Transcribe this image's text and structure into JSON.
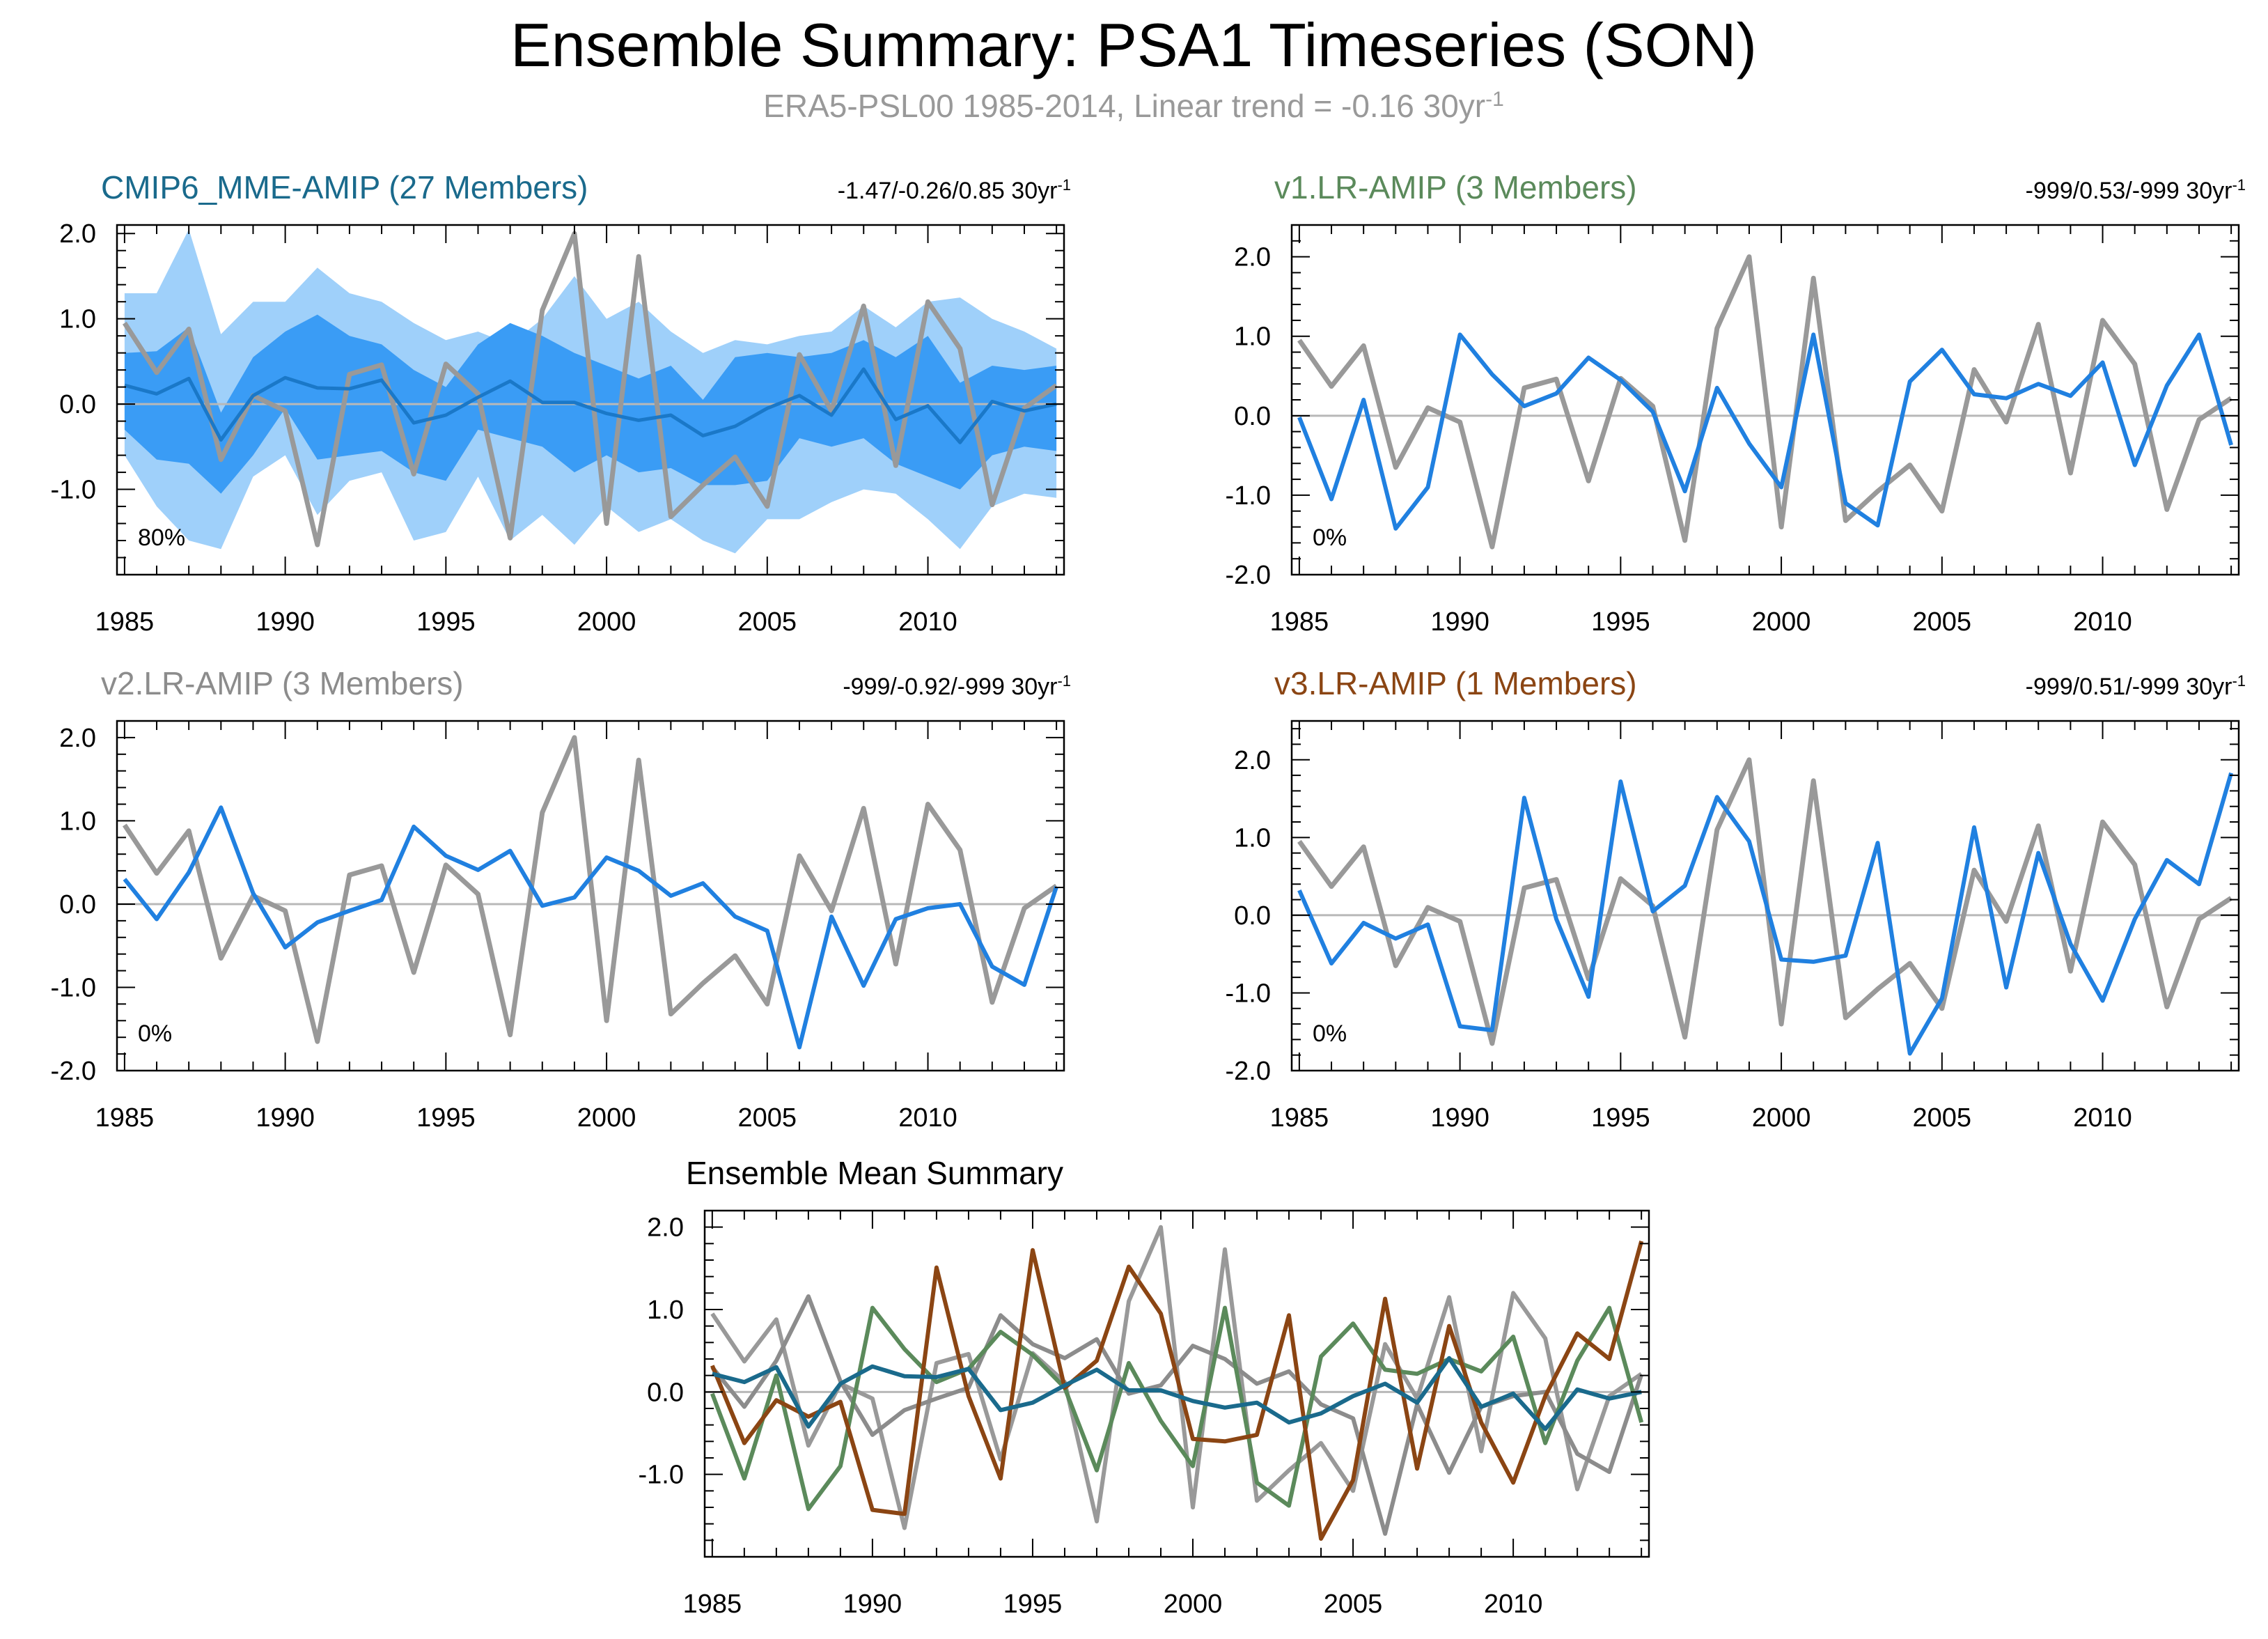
{
  "title": "Ensemble Summary: PSA1 Timeseries (SON)",
  "subtitle": "ERA5-PSL00 1985-2014, Linear trend = -0.16 30yr",
  "subtitle_sup": "-1",
  "colors": {
    "obs": "#999999",
    "model_line": "#2080e0",
    "band_outer": "#9fd0fa",
    "band_inner": "#3a9cf5",
    "mme_mean": "#1a78c8",
    "zero_line": "#b8b8b8",
    "mme_title": "#1a6a8c",
    "v1_title": "#5b8a5b",
    "v2_title": "#8c8c8c",
    "v3_title": "#8b4513"
  },
  "chart_data": [
    {
      "type": "line",
      "title": "CMIP6_MME-AMIP (27 Members)",
      "stats": "-1.47/-0.26/0.85 30yr",
      "stats_sup": "-1",
      "pct_label": "80%",
      "x": [
        1985,
        1986,
        1987,
        1988,
        1989,
        1990,
        1991,
        1992,
        1993,
        1994,
        1995,
        1996,
        1997,
        1998,
        1999,
        2000,
        2001,
        2002,
        2003,
        2004,
        2005,
        2006,
        2007,
        2008,
        2009,
        2010,
        2011,
        2012,
        2013,
        2014
      ],
      "xticks": [
        1985,
        1990,
        1995,
        2000,
        2005,
        2010
      ],
      "ylim": [
        -2.0,
        2.1
      ],
      "yticks": [
        2.0,
        1.0,
        0.0,
        -1.0
      ],
      "yticklabels": [
        "2.0",
        "1.0",
        "0.0",
        "-1.0"
      ],
      "observed": [
        0.95,
        0.37,
        0.88,
        -0.65,
        0.1,
        -0.08,
        -1.65,
        0.35,
        0.46,
        -0.82,
        0.47,
        0.12,
        -1.57,
        1.1,
        2.0,
        -1.4,
        1.73,
        -1.32,
        -0.95,
        -0.62,
        -1.2,
        0.58,
        -0.08,
        1.15,
        -0.72,
        1.2,
        0.65,
        -1.18,
        -0.05,
        0.22
      ],
      "model": [
        0.22,
        0.12,
        0.3,
        -0.42,
        0.1,
        0.31,
        0.19,
        0.18,
        0.28,
        -0.22,
        -0.13,
        0.08,
        0.27,
        0.02,
        0.02,
        -0.11,
        -0.19,
        -0.13,
        -0.37,
        -0.26,
        -0.05,
        0.1,
        -0.13,
        0.41,
        -0.18,
        -0.02,
        -0.45,
        0.03,
        -0.08,
        0.0
      ],
      "band_outer_hi": [
        1.3,
        1.3,
        2.05,
        0.82,
        1.2,
        1.2,
        1.6,
        1.3,
        1.2,
        0.95,
        0.75,
        0.85,
        0.7,
        1.0,
        1.5,
        1.0,
        1.2,
        0.85,
        0.6,
        0.75,
        0.7,
        0.8,
        0.85,
        1.15,
        0.9,
        1.2,
        1.25,
        1.0,
        0.85,
        0.65
      ],
      "band_inner_hi": [
        0.6,
        0.62,
        0.9,
        -0.1,
        0.55,
        0.85,
        1.05,
        0.8,
        0.7,
        0.4,
        0.2,
        0.7,
        0.95,
        0.8,
        0.6,
        0.45,
        0.3,
        0.45,
        0.05,
        0.55,
        0.6,
        0.55,
        0.6,
        0.75,
        0.55,
        0.8,
        0.25,
        0.45,
        0.4,
        0.45
      ],
      "band_inner_lo": [
        -0.3,
        -0.65,
        -0.7,
        -1.05,
        -0.6,
        -0.05,
        -0.65,
        -0.6,
        -0.55,
        -0.8,
        -0.9,
        -0.3,
        -0.4,
        -0.5,
        -0.8,
        -0.6,
        -0.8,
        -0.75,
        -0.95,
        -0.95,
        -0.9,
        -0.4,
        -0.5,
        -0.4,
        -0.7,
        -0.85,
        -1.0,
        -0.6,
        -0.5,
        -0.55
      ],
      "band_outer_lo": [
        -0.6,
        -1.2,
        -1.6,
        -1.7,
        -0.85,
        -0.6,
        -1.3,
        -0.9,
        -0.8,
        -1.6,
        -1.5,
        -0.85,
        -1.6,
        -1.3,
        -1.65,
        -1.2,
        -1.5,
        -1.35,
        -1.6,
        -1.75,
        -1.35,
        -1.35,
        -1.15,
        -1.0,
        -1.05,
        -1.35,
        -1.7,
        -1.2,
        -1.05,
        -1.1
      ]
    },
    {
      "type": "line",
      "title": "v1.LR-AMIP (3 Members)",
      "stats": "-999/0.53/-999 30yr",
      "stats_sup": "-1",
      "pct_label": "0%",
      "x": [
        1985,
        1986,
        1987,
        1988,
        1989,
        1990,
        1991,
        1992,
        1993,
        1994,
        1995,
        1996,
        1997,
        1998,
        1999,
        2000,
        2001,
        2002,
        2003,
        2004,
        2005,
        2006,
        2007,
        2008,
        2009,
        2010,
        2011,
        2012,
        2013,
        2014
      ],
      "xticks": [
        1985,
        1990,
        1995,
        2000,
        2005,
        2010
      ],
      "ylim": [
        -2.0,
        2.4
      ],
      "yticks": [
        2.0,
        1.0,
        0.0,
        -1.0,
        -2.0
      ],
      "yticklabels": [
        "2.0",
        "1.0",
        "0.0",
        "-1.0",
        "-2.0"
      ],
      "observed": [
        0.95,
        0.37,
        0.88,
        -0.65,
        0.1,
        -0.08,
        -1.65,
        0.35,
        0.46,
        -0.82,
        0.47,
        0.12,
        -1.57,
        1.1,
        2.0,
        -1.4,
        1.73,
        -1.32,
        -0.95,
        -0.62,
        -1.2,
        0.58,
        -0.08,
        1.15,
        -0.72,
        1.2,
        0.65,
        -1.18,
        -0.05,
        0.22
      ],
      "model": [
        -0.02,
        -1.05,
        0.2,
        -1.42,
        -0.9,
        1.02,
        0.52,
        0.12,
        0.28,
        0.73,
        0.45,
        0.05,
        -0.95,
        0.35,
        -0.35,
        -0.9,
        1.02,
        -1.1,
        -1.38,
        0.43,
        0.83,
        0.27,
        0.22,
        0.4,
        0.25,
        0.67,
        -0.62,
        0.38,
        1.02,
        -0.37
      ]
    },
    {
      "type": "line",
      "title": "v2.LR-AMIP (3 Members)",
      "stats": "-999/-0.92/-999 30yr",
      "stats_sup": "-1",
      "pct_label": "0%",
      "x": [
        1985,
        1986,
        1987,
        1988,
        1989,
        1990,
        1991,
        1992,
        1993,
        1994,
        1995,
        1996,
        1997,
        1998,
        1999,
        2000,
        2001,
        2002,
        2003,
        2004,
        2005,
        2006,
        2007,
        2008,
        2009,
        2010,
        2011,
        2012,
        2013,
        2014
      ],
      "xticks": [
        1985,
        1990,
        1995,
        2000,
        2005,
        2010
      ],
      "ylim": [
        -2.0,
        2.2
      ],
      "yticks": [
        2.0,
        1.0,
        0.0,
        -1.0,
        -2.0
      ],
      "yticklabels": [
        "2.0",
        "1.0",
        "0.0",
        "-1.0",
        "-2.0"
      ],
      "observed": [
        0.95,
        0.37,
        0.88,
        -0.65,
        0.1,
        -0.08,
        -1.65,
        0.35,
        0.46,
        -0.82,
        0.47,
        0.12,
        -1.57,
        1.1,
        2.0,
        -1.4,
        1.73,
        -1.32,
        -0.95,
        -0.62,
        -1.2,
        0.58,
        -0.08,
        1.15,
        -0.72,
        1.2,
        0.65,
        -1.18,
        -0.05,
        0.22
      ],
      "model": [
        0.3,
        -0.18,
        0.38,
        1.16,
        0.13,
        -0.52,
        -0.22,
        -0.08,
        0.05,
        0.93,
        0.58,
        0.41,
        0.64,
        -0.02,
        0.08,
        0.56,
        0.4,
        0.1,
        0.25,
        -0.15,
        -0.32,
        -1.72,
        -0.15,
        -0.98,
        -0.18,
        -0.05,
        0.0,
        -0.75,
        -0.97,
        0.21
      ]
    },
    {
      "type": "line",
      "title": "v3.LR-AMIP (1 Members)",
      "stats": "-999/0.51/-999 30yr",
      "stats_sup": "-1",
      "pct_label": "0%",
      "x": [
        1985,
        1986,
        1987,
        1988,
        1989,
        1990,
        1991,
        1992,
        1993,
        1994,
        1995,
        1996,
        1997,
        1998,
        1999,
        2000,
        2001,
        2002,
        2003,
        2004,
        2005,
        2006,
        2007,
        2008,
        2009,
        2010,
        2011,
        2012,
        2013,
        2014
      ],
      "xticks": [
        1985,
        1990,
        1995,
        2000,
        2005,
        2010
      ],
      "ylim": [
        -2.0,
        2.5
      ],
      "yticks": [
        2.0,
        1.0,
        0.0,
        -1.0,
        -2.0
      ],
      "yticklabels": [
        "2.0",
        "1.0",
        "0.0",
        "-1.0",
        "-2.0"
      ],
      "observed": [
        0.95,
        0.37,
        0.88,
        -0.65,
        0.1,
        -0.08,
        -1.65,
        0.35,
        0.46,
        -0.82,
        0.47,
        0.12,
        -1.57,
        1.1,
        2.0,
        -1.4,
        1.73,
        -1.32,
        -0.95,
        -0.62,
        -1.2,
        0.58,
        -0.08,
        1.15,
        -0.72,
        1.2,
        0.65,
        -1.18,
        -0.05,
        0.22
      ],
      "model": [
        0.32,
        -0.62,
        -0.1,
        -0.3,
        -0.12,
        -1.43,
        -1.48,
        1.51,
        -0.05,
        -1.05,
        1.72,
        0.05,
        0.38,
        1.52,
        0.95,
        -0.57,
        -0.6,
        -0.52,
        0.93,
        -1.78,
        -1.07,
        1.13,
        -0.93,
        0.8,
        -0.37,
        -1.1,
        -0.05,
        0.71,
        0.4,
        1.83
      ]
    },
    {
      "type": "line",
      "title": "Ensemble Mean Summary",
      "x": [
        1985,
        1986,
        1987,
        1988,
        1989,
        1990,
        1991,
        1992,
        1993,
        1994,
        1995,
        1996,
        1997,
        1998,
        1999,
        2000,
        2001,
        2002,
        2003,
        2004,
        2005,
        2006,
        2007,
        2008,
        2009,
        2010,
        2011,
        2012,
        2013,
        2014
      ],
      "xticks": [
        1985,
        1990,
        1995,
        2000,
        2005,
        2010
      ],
      "ylim": [
        -2.0,
        2.2
      ],
      "yticks": [
        2.0,
        1.0,
        0.0,
        -1.0
      ],
      "yticklabels": [
        "2.0",
        "1.0",
        "0.0",
        "-1.0"
      ],
      "series": [
        {
          "name": "ERA5-PSL00",
          "color": "#999999",
          "values": [
            0.95,
            0.37,
            0.88,
            -0.65,
            0.1,
            -0.08,
            -1.65,
            0.35,
            0.46,
            -0.82,
            0.47,
            0.12,
            -1.57,
            1.1,
            2.0,
            -1.4,
            1.73,
            -1.32,
            -0.95,
            -0.62,
            -1.2,
            0.58,
            -0.08,
            1.15,
            -0.72,
            1.2,
            0.65,
            -1.18,
            -0.05,
            0.22
          ]
        },
        {
          "name": "v2.LR-AMIP",
          "color": "#8c8c8c",
          "values": [
            0.3,
            -0.18,
            0.38,
            1.16,
            0.13,
            -0.52,
            -0.22,
            -0.08,
            0.05,
            0.93,
            0.58,
            0.41,
            0.64,
            -0.02,
            0.08,
            0.56,
            0.4,
            0.1,
            0.25,
            -0.15,
            -0.32,
            -1.72,
            -0.15,
            -0.98,
            -0.18,
            -0.05,
            0.0,
            -0.75,
            -0.97,
            0.21
          ]
        },
        {
          "name": "v1.LR-AMIP",
          "color": "#5b8a5b",
          "values": [
            -0.02,
            -1.05,
            0.2,
            -1.42,
            -0.9,
            1.02,
            0.52,
            0.12,
            0.28,
            0.73,
            0.45,
            0.05,
            -0.95,
            0.35,
            -0.35,
            -0.9,
            1.02,
            -1.1,
            -1.38,
            0.43,
            0.83,
            0.27,
            0.22,
            0.4,
            0.25,
            0.67,
            -0.62,
            0.38,
            1.02,
            -0.37
          ]
        },
        {
          "name": "v3.LR-AMIP",
          "color": "#8b4513",
          "values": [
            0.32,
            -0.62,
            -0.1,
            -0.3,
            -0.12,
            -1.43,
            -1.48,
            1.51,
            -0.05,
            -1.05,
            1.72,
            0.05,
            0.38,
            1.52,
            0.95,
            -0.57,
            -0.6,
            -0.52,
            0.93,
            -1.78,
            -1.07,
            1.13,
            -0.93,
            0.8,
            -0.37,
            -1.1,
            -0.05,
            0.71,
            0.4,
            1.83
          ]
        },
        {
          "name": "CMIP6_MME-AMIP",
          "color": "#1a6a8c",
          "values": [
            0.22,
            0.12,
            0.3,
            -0.42,
            0.1,
            0.31,
            0.19,
            0.18,
            0.28,
            -0.22,
            -0.13,
            0.08,
            0.27,
            0.02,
            0.02,
            -0.11,
            -0.19,
            -0.13,
            -0.37,
            -0.26,
            -0.05,
            0.1,
            -0.13,
            0.41,
            -0.18,
            -0.02,
            -0.45,
            0.03,
            -0.08,
            0.0
          ]
        }
      ]
    }
  ]
}
